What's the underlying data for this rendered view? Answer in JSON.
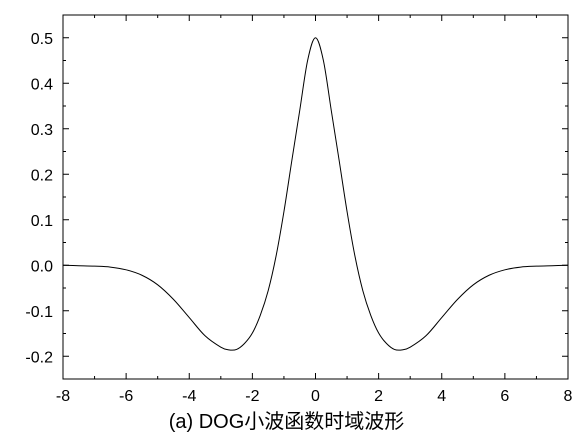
{
  "caption": "(a) DOG小波函数时域波形",
  "chart_data": {
    "type": "line",
    "title": "",
    "xlabel": "",
    "ylabel": "",
    "xlim": [
      -8,
      8
    ],
    "ylim": [
      -0.25,
      0.55
    ],
    "xticks": [
      -8,
      -6,
      -4,
      -2,
      0,
      2,
      4,
      6,
      8
    ],
    "yticks": [
      -0.2,
      -0.1,
      0.0,
      0.1,
      0.2,
      0.3,
      0.4,
      0.5
    ],
    "ytick_labels": [
      "-0.2",
      "-0.1",
      "0.0",
      "0.1",
      "0.2",
      "0.3",
      "0.4",
      "0.5"
    ],
    "grid": false,
    "legend": "none",
    "line_color": "#000000",
    "series": [
      {
        "x": [
          -8,
          -7.5,
          -7,
          -6.5,
          -6,
          -5.5,
          -5,
          -4.5,
          -4,
          -3.5,
          -3,
          -2.75,
          -2.5,
          -2.25,
          -2,
          -1.75,
          -1.5,
          -1.25,
          -1,
          -0.75,
          -0.5,
          -0.25,
          0,
          0.25,
          0.5,
          0.75,
          1,
          1.25,
          1.5,
          1.75,
          2,
          2.25,
          2.5,
          2.75,
          3,
          3.5,
          4,
          4.5,
          5,
          5.5,
          6,
          6.5,
          7,
          7.5,
          8
        ],
        "y": [
          0.0,
          -0.001,
          -0.002,
          -0.004,
          -0.01,
          -0.022,
          -0.043,
          -0.075,
          -0.115,
          -0.155,
          -0.18,
          -0.186,
          -0.185,
          -0.172,
          -0.149,
          -0.11,
          -0.056,
          0.02,
          0.118,
          0.23,
          0.34,
          0.45,
          0.5,
          0.45,
          0.34,
          0.23,
          0.118,
          0.02,
          -0.056,
          -0.11,
          -0.149,
          -0.172,
          -0.185,
          -0.186,
          -0.18,
          -0.155,
          -0.115,
          -0.075,
          -0.043,
          -0.022,
          -0.01,
          -0.004,
          -0.002,
          -0.001,
          0.0
        ]
      }
    ]
  }
}
